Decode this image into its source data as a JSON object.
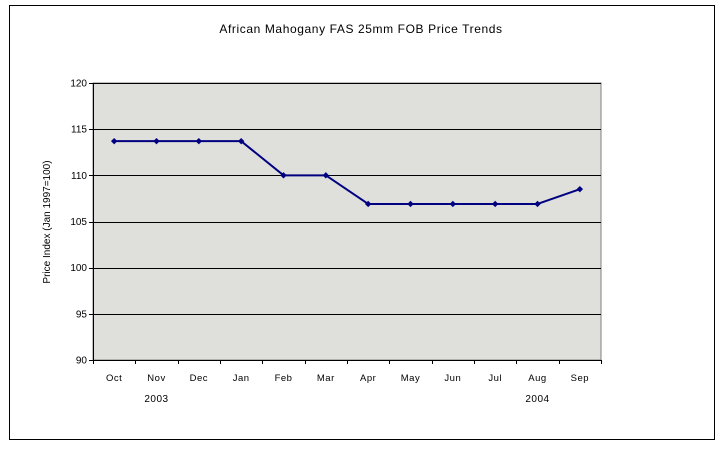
{
  "chart_data": {
    "type": "line",
    "title": "African Mahogany FAS 25mm FOB Price Trends",
    "xlabel": "",
    "ylabel": "Price Index (Jan 1997=100)",
    "categories": [
      "Oct",
      "Nov",
      "Dec",
      "Jan",
      "Feb",
      "Mar",
      "Apr",
      "May",
      "Jun",
      "Jul",
      "Aug",
      "Sep"
    ],
    "year_labels": [
      {
        "text": "2003",
        "category": "Nov"
      },
      {
        "text": "2004",
        "category": "Aug"
      }
    ],
    "series": [
      {
        "values": [
          113.7,
          113.7,
          113.7,
          113.7,
          110.0,
          110.0,
          106.9,
          106.9,
          106.9,
          106.9,
          106.9,
          108.5
        ]
      }
    ],
    "ylim": [
      90,
      120
    ],
    "yticks": [
      90,
      95,
      100,
      105,
      110,
      115,
      120
    ],
    "grid": true,
    "legend": "none",
    "colors": {
      "line": "#000080",
      "plot_bg": "#dfe0dc",
      "grid": "#000000"
    }
  }
}
